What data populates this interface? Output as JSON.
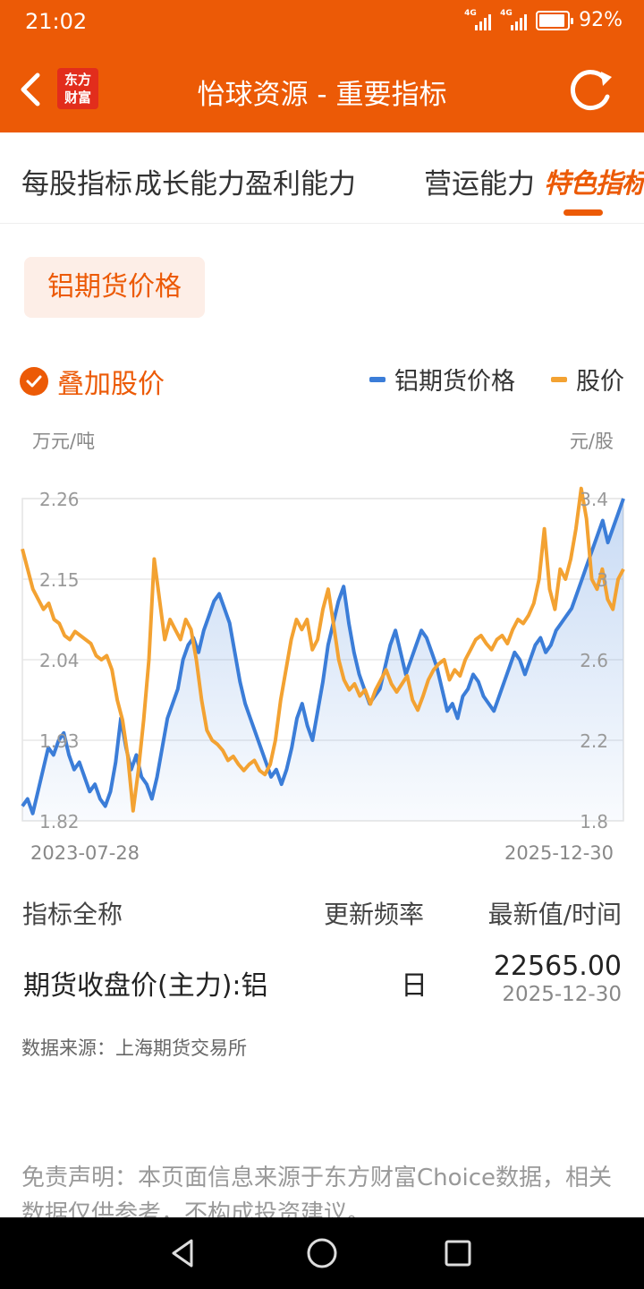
{
  "status_bar": {
    "time": "21:02",
    "network_1": "4G",
    "network_2": "4G",
    "battery": "92%",
    "battery_level": 0.92
  },
  "header": {
    "title": "怡球资源 - 重要指标",
    "logo_line1": "东方",
    "logo_line2": "财富"
  },
  "tabs": [
    "每股指标",
    "成长能力",
    "盈利能力",
    "营运能力",
    "特色指标"
  ],
  "active_tab": "特色指标",
  "chip": {
    "label": "铝期货价格"
  },
  "overlay": {
    "label": "叠加股价",
    "checked": true
  },
  "legend": {
    "left": "铝期货价格",
    "right": "股价"
  },
  "colors": {
    "brand": "#ec5a06",
    "series_futures": "#3b7dd8",
    "series_stock": "#f3a232"
  },
  "chart_data": {
    "type": "line",
    "left_unit": "万元/吨",
    "right_unit": "元/股",
    "x_start": "2023-07-28",
    "x_end": "2025-12-30",
    "left_axis": {
      "ticks": [
        "2.26",
        "2.15",
        "2.04",
        "1.93",
        "1.82"
      ],
      "range": [
        1.82,
        2.26
      ]
    },
    "right_axis": {
      "ticks": [
        "3.4",
        "3",
        "2.6",
        "2.2",
        "1.8"
      ],
      "range": [
        1.8,
        3.4
      ]
    },
    "grid": true,
    "series": [
      {
        "name": "铝期货价格",
        "axis": "left",
        "area": true,
        "values": [
          1.84,
          1.85,
          1.83,
          1.86,
          1.89,
          1.92,
          1.91,
          1.93,
          1.94,
          1.91,
          1.89,
          1.9,
          1.88,
          1.86,
          1.87,
          1.85,
          1.84,
          1.86,
          1.9,
          1.96,
          1.92,
          1.89,
          1.91,
          1.88,
          1.87,
          1.85,
          1.88,
          1.92,
          1.96,
          1.98,
          2.0,
          2.04,
          2.06,
          2.07,
          2.05,
          2.08,
          2.1,
          2.12,
          2.13,
          2.11,
          2.09,
          2.05,
          2.01,
          1.98,
          1.96,
          1.94,
          1.92,
          1.9,
          1.88,
          1.89,
          1.87,
          1.89,
          1.92,
          1.96,
          1.98,
          1.95,
          1.93,
          1.97,
          2.01,
          2.06,
          2.09,
          2.12,
          2.14,
          2.09,
          2.05,
          2.02,
          2.0,
          1.98,
          1.99,
          2.0,
          2.03,
          2.06,
          2.08,
          2.05,
          2.02,
          2.04,
          2.06,
          2.08,
          2.07,
          2.05,
          2.03,
          2.0,
          1.97,
          1.98,
          1.96,
          1.99,
          2.0,
          2.02,
          2.01,
          1.99,
          1.98,
          1.97,
          1.99,
          2.01,
          2.03,
          2.05,
          2.04,
          2.02,
          2.04,
          2.06,
          2.07,
          2.05,
          2.06,
          2.08,
          2.09,
          2.1,
          2.11,
          2.13,
          2.15,
          2.17,
          2.19,
          2.21,
          2.23,
          2.2,
          2.22,
          2.24,
          2.26
        ]
      },
      {
        "name": "股价",
        "axis": "right",
        "area": false,
        "values": [
          3.15,
          3.05,
          2.95,
          2.9,
          2.85,
          2.88,
          2.8,
          2.78,
          2.72,
          2.7,
          2.74,
          2.72,
          2.7,
          2.68,
          2.62,
          2.6,
          2.62,
          2.55,
          2.4,
          2.3,
          2.12,
          1.85,
          2.05,
          2.3,
          2.6,
          3.1,
          2.9,
          2.7,
          2.8,
          2.75,
          2.7,
          2.8,
          2.75,
          2.6,
          2.4,
          2.25,
          2.2,
          2.18,
          2.15,
          2.1,
          2.12,
          2.08,
          2.05,
          2.08,
          2.1,
          2.05,
          2.03,
          2.08,
          2.2,
          2.4,
          2.55,
          2.7,
          2.8,
          2.75,
          2.8,
          2.65,
          2.7,
          2.85,
          2.95,
          2.78,
          2.6,
          2.5,
          2.45,
          2.48,
          2.42,
          2.45,
          2.38,
          2.45,
          2.5,
          2.55,
          2.48,
          2.44,
          2.48,
          2.52,
          2.4,
          2.35,
          2.42,
          2.5,
          2.55,
          2.58,
          2.6,
          2.5,
          2.55,
          2.52,
          2.6,
          2.65,
          2.7,
          2.72,
          2.68,
          2.65,
          2.7,
          2.72,
          2.68,
          2.75,
          2.8,
          2.78,
          2.82,
          2.88,
          3.0,
          3.25,
          2.95,
          2.85,
          3.05,
          3.0,
          3.1,
          3.25,
          3.45,
          3.3,
          3.0,
          2.95,
          3.05,
          2.9,
          2.85,
          3.0,
          3.05
        ]
      }
    ]
  },
  "table": {
    "headers": [
      "指标全称",
      "更新频率",
      "最新值/时间"
    ],
    "row": {
      "name": "期货收盘价(主力):铝",
      "frequency": "日",
      "value": "22565.00",
      "date": "2025-12-30"
    }
  },
  "source": "数据来源：上海期货交易所",
  "disclaimer": "免责声明：本页面信息来源于东方财富Choice数据，相关数据仅供参考，不构成投资建议。"
}
